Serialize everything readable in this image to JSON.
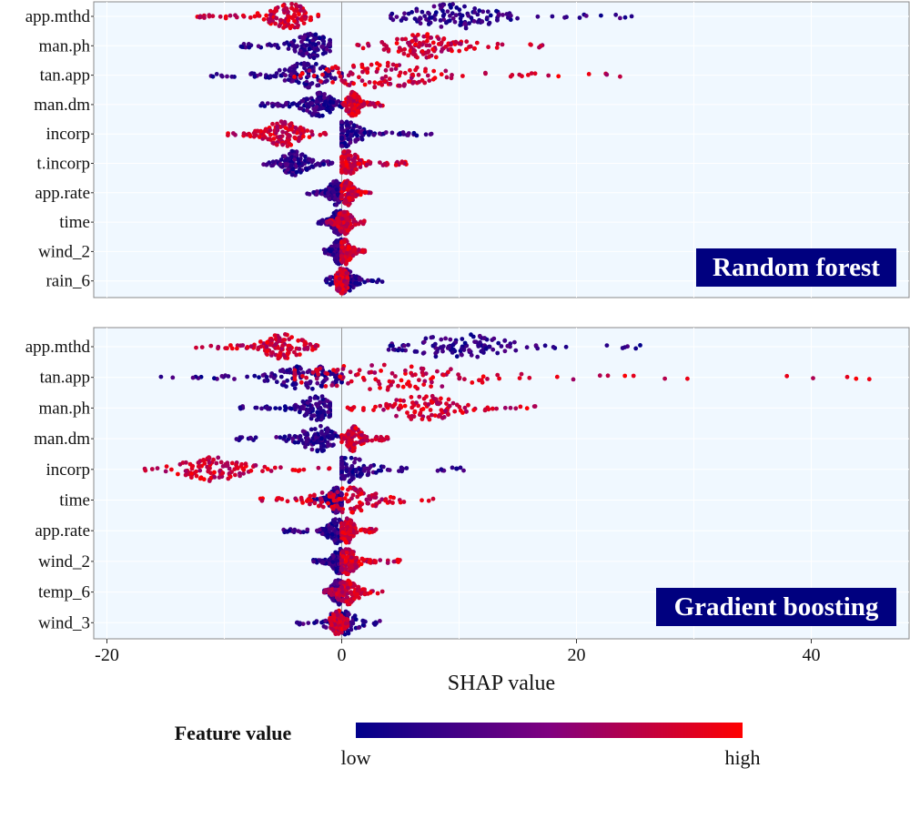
{
  "chart_data": [
    {
      "type": "scatter",
      "subtype": "shap-beeswarm",
      "panel_label": "Random forest",
      "features": [
        {
          "name": "app.mthd",
          "low_range": [
            4,
            25.5
          ],
          "high_range": [
            -12.5,
            -2
          ],
          "center_low": 9.5,
          "center_high": -4.5
        },
        {
          "name": "man.ph",
          "low_range": [
            -9.5,
            -1
          ],
          "high_range": [
            1,
            18
          ],
          "center_low": -2.5,
          "center_high": 7
        },
        {
          "name": "tan.app",
          "low_range": [
            -11.5,
            0
          ],
          "high_range": [
            -5,
            25
          ],
          "center_low": -3,
          "center_high": 3
        },
        {
          "name": "man.dm",
          "low_range": [
            -7,
            0
          ],
          "high_range": [
            0,
            3.5
          ],
          "center_low": -2,
          "center_high": 1
        },
        {
          "name": "incorp",
          "low_range": [
            0,
            8
          ],
          "high_range": [
            -10,
            -1
          ],
          "center_low": 0.3,
          "center_high": -5
        },
        {
          "name": "t.incorp",
          "low_range": [
            -7,
            -0.5
          ],
          "high_range": [
            0,
            5.5
          ],
          "center_low": -4,
          "center_high": 0.5
        },
        {
          "name": "app.rate",
          "low_range": [
            -3,
            0
          ],
          "high_range": [
            0,
            2.5
          ],
          "center_low": -0.5,
          "center_high": 0.5
        },
        {
          "name": "time",
          "low_range": [
            -2,
            0
          ],
          "high_range": [
            -1.5,
            2
          ],
          "center_low": -0.3,
          "center_high": 0.2
        },
        {
          "name": "wind_2",
          "low_range": [
            -1.5,
            0
          ],
          "high_range": [
            0,
            2
          ],
          "center_low": -0.2,
          "center_high": 0.3
        },
        {
          "name": "rain_6",
          "low_range": [
            -1.5,
            3.5
          ],
          "high_range": [
            -0.5,
            0.5
          ],
          "center_low": 0.2,
          "center_high": 0
        }
      ],
      "xlim": [
        -21,
        48
      ],
      "xticks": [
        -20,
        0,
        20,
        40
      ],
      "xlabel": "SHAP value",
      "grid": true
    },
    {
      "type": "scatter",
      "subtype": "shap-beeswarm",
      "panel_label": "Gradient boosting",
      "features": [
        {
          "name": "app.mthd",
          "low_range": [
            4,
            27
          ],
          "high_range": [
            -12.5,
            -2
          ],
          "center_low": 10,
          "center_high": -5
        },
        {
          "name": "tan.app",
          "low_range": [
            -15.5,
            0
          ],
          "high_range": [
            -4,
            45
          ],
          "center_low": -3,
          "center_high": 3
        },
        {
          "name": "man.ph",
          "low_range": [
            -9,
            -1
          ],
          "high_range": [
            0,
            17.5
          ],
          "center_low": -2,
          "center_high": 7
        },
        {
          "name": "man.dm",
          "low_range": [
            -9,
            0
          ],
          "high_range": [
            0,
            4
          ],
          "center_low": -2,
          "center_high": 1
        },
        {
          "name": "incorp",
          "low_range": [
            0,
            10.5
          ],
          "high_range": [
            -17,
            -1
          ],
          "center_low": 0.5,
          "center_high": -11
        },
        {
          "name": "time",
          "low_range": [
            -2.5,
            0
          ],
          "high_range": [
            -7,
            8
          ],
          "center_low": -0.5,
          "center_high": 0.5
        },
        {
          "name": "app.rate",
          "low_range": [
            -5,
            0
          ],
          "high_range": [
            0,
            3
          ],
          "center_low": -0.5,
          "center_high": 0.5
        },
        {
          "name": "wind_2",
          "low_range": [
            -2.5,
            0
          ],
          "high_range": [
            0,
            5
          ],
          "center_low": -0.2,
          "center_high": 0.5
        },
        {
          "name": "temp_6",
          "low_range": [
            -1.5,
            0
          ],
          "high_range": [
            -1.5,
            4
          ],
          "center_low": -0.3,
          "center_high": 0.5
        },
        {
          "name": "wind_3",
          "low_range": [
            -4,
            3.5
          ],
          "high_range": [
            -1,
            0.5
          ],
          "center_low": 0,
          "center_high": -0.3
        }
      ],
      "xlim": [
        -21,
        48
      ],
      "xticks": [
        -20,
        0,
        20,
        40
      ],
      "xlabel": "SHAP value",
      "grid": true
    }
  ],
  "x_axis": {
    "label": "SHAP value",
    "ticks": [
      "-20",
      "0",
      "20",
      "40"
    ]
  },
  "legend": {
    "title": "Feature value",
    "low_label": "low",
    "high_label": "high",
    "colors": {
      "low": "#00008b",
      "mid": "#800080",
      "high": "#ff0000"
    },
    "placement": "bottom"
  },
  "colors": {
    "panel_background": "#f0f8ff",
    "panel_label_background": "#00007f",
    "zero_line": "#999999",
    "gridline": "#ffffff"
  }
}
